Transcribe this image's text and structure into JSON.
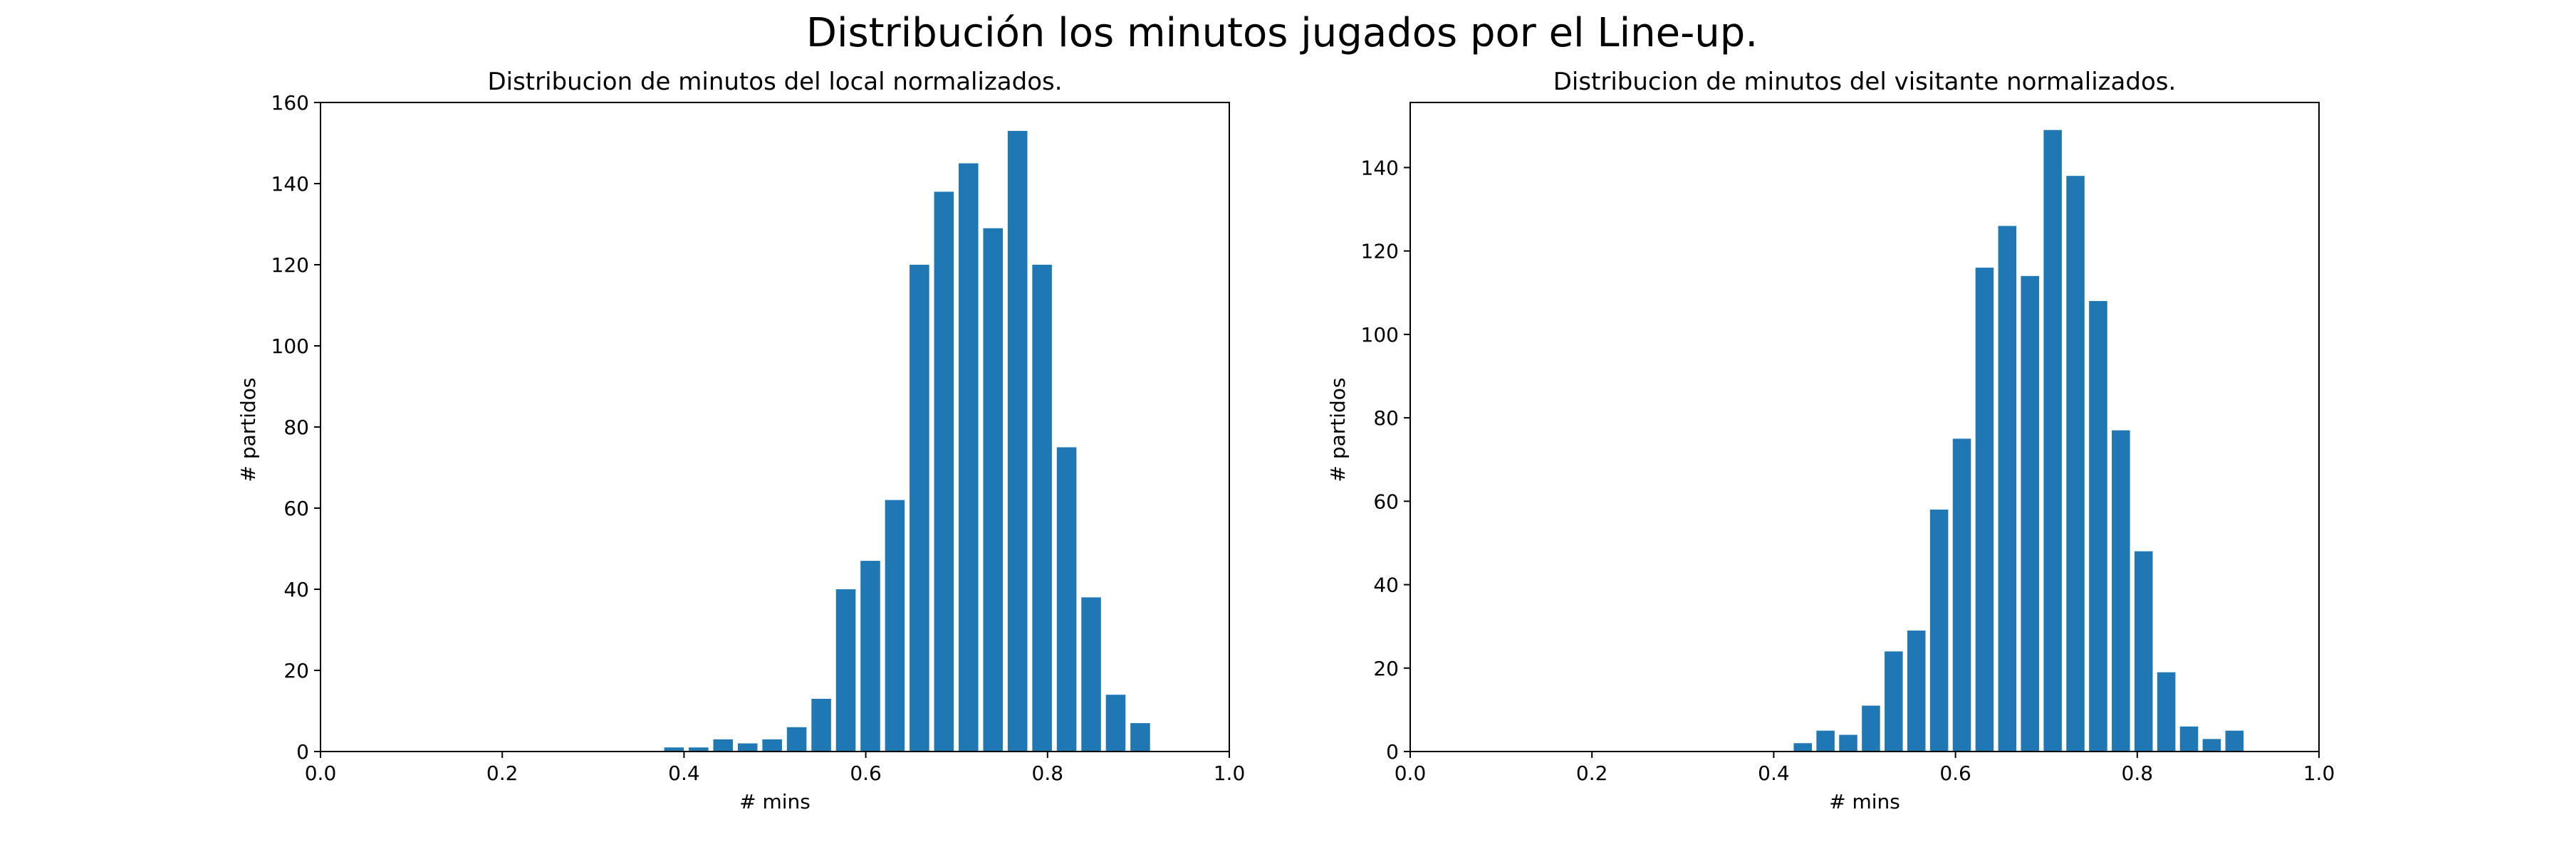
{
  "figure": {
    "suptitle": "Distribución los minutos jugados por el Line-up."
  },
  "colors": {
    "bar": "#1f77b4",
    "axis": "#000000",
    "background": "#ffffff"
  },
  "chart_data": [
    {
      "type": "bar",
      "title": "Distribucion de minutos del local normalizados.",
      "xlabel": "# mins",
      "ylabel": "# partidos",
      "xlim": [
        0.0,
        1.0
      ],
      "ylim": [
        0,
        160
      ],
      "xticks": [
        0.0,
        0.2,
        0.4,
        0.6,
        0.8,
        1.0
      ],
      "xtick_labels": [
        "0.0",
        "0.2",
        "0.4",
        "0.6",
        "0.8",
        "1.0"
      ],
      "yticks": [
        0,
        20,
        40,
        60,
        80,
        100,
        120,
        140,
        160
      ],
      "ytick_labels": [
        "0",
        "20",
        "40",
        "60",
        "80",
        "100",
        "120",
        "140",
        "160"
      ],
      "grid": false,
      "x": [
        0.389,
        0.416,
        0.443,
        0.47,
        0.497,
        0.524,
        0.551,
        0.578,
        0.605,
        0.632,
        0.659,
        0.686,
        0.713,
        0.74,
        0.767,
        0.794,
        0.821,
        0.848,
        0.875,
        0.902
      ],
      "values": [
        1,
        1,
        3,
        2,
        3,
        6,
        13,
        40,
        47,
        62,
        120,
        138,
        145,
        129,
        153,
        120,
        75,
        38,
        14,
        7
      ],
      "bar_width": 0.0216
    },
    {
      "type": "bar",
      "title": "Distribucion de minutos del visitante normalizados.",
      "xlabel": "# mins",
      "ylabel": "# partidos",
      "xlim": [
        0.0,
        1.0
      ],
      "ylim": [
        0,
        155.6
      ],
      "xticks": [
        0.0,
        0.2,
        0.4,
        0.6,
        0.8,
        1.0
      ],
      "xtick_labels": [
        "0.0",
        "0.2",
        "0.4",
        "0.6",
        "0.8",
        "1.0"
      ],
      "yticks": [
        0,
        20,
        40,
        60,
        80,
        100,
        120,
        140
      ],
      "ytick_labels": [
        "0",
        "20",
        "40",
        "60",
        "80",
        "100",
        "120",
        "140"
      ],
      "grid": false,
      "x": [
        0.432,
        0.457,
        0.482,
        0.507,
        0.532,
        0.557,
        0.582,
        0.607,
        0.632,
        0.657,
        0.682,
        0.707,
        0.732,
        0.757,
        0.782,
        0.807,
        0.832,
        0.857,
        0.882,
        0.907
      ],
      "values": [
        2,
        5,
        4,
        11,
        24,
        29,
        58,
        75,
        116,
        126,
        114,
        149,
        138,
        108,
        77,
        48,
        19,
        6,
        3,
        5
      ],
      "bar_width": 0.02
    }
  ]
}
